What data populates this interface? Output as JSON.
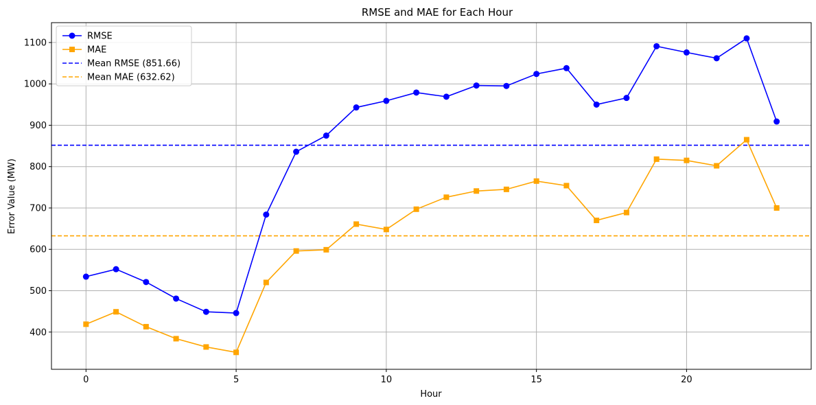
{
  "chart_data": {
    "type": "line",
    "title": "RMSE and MAE for Each Hour",
    "xlabel": "Hour",
    "ylabel": "Error Value (MW)",
    "xlim": [
      -1.15,
      24.15
    ],
    "ylim": [
      310,
      1148
    ],
    "xticks": [
      0,
      5,
      10,
      15,
      20
    ],
    "yticks": [
      400,
      500,
      600,
      700,
      800,
      900,
      1000,
      1100
    ],
    "grid": true,
    "legend_position": "top-left",
    "x": [
      0,
      1,
      2,
      3,
      4,
      5,
      6,
      7,
      8,
      9,
      10,
      11,
      12,
      13,
      14,
      15,
      16,
      17,
      18,
      19,
      20,
      21,
      22,
      23
    ],
    "series": [
      {
        "name": "RMSE",
        "color": "#0000ff",
        "marker": "circle",
        "values": [
          534,
          552,
          521,
          481,
          449,
          446,
          684,
          836,
          875,
          943,
          959,
          979,
          969,
          996,
          995,
          1024,
          1038,
          950,
          966,
          1091,
          1076,
          1062,
          1110,
          909
        ]
      },
      {
        "name": "MAE",
        "color": "#ffa500",
        "marker": "square",
        "values": [
          419,
          449,
          413,
          384,
          364,
          351,
          520,
          596,
          599,
          661,
          648,
          697,
          726,
          741,
          745,
          765,
          754,
          670,
          689,
          818,
          815,
          802,
          865,
          700
        ]
      }
    ],
    "reference_lines": [
      {
        "name": "Mean RMSE (851.66)",
        "value": 851.66,
        "color": "#0000ff",
        "style": "dashed"
      },
      {
        "name": "Mean MAE (632.62)",
        "value": 632.62,
        "color": "#ffa500",
        "style": "dashed"
      }
    ]
  }
}
